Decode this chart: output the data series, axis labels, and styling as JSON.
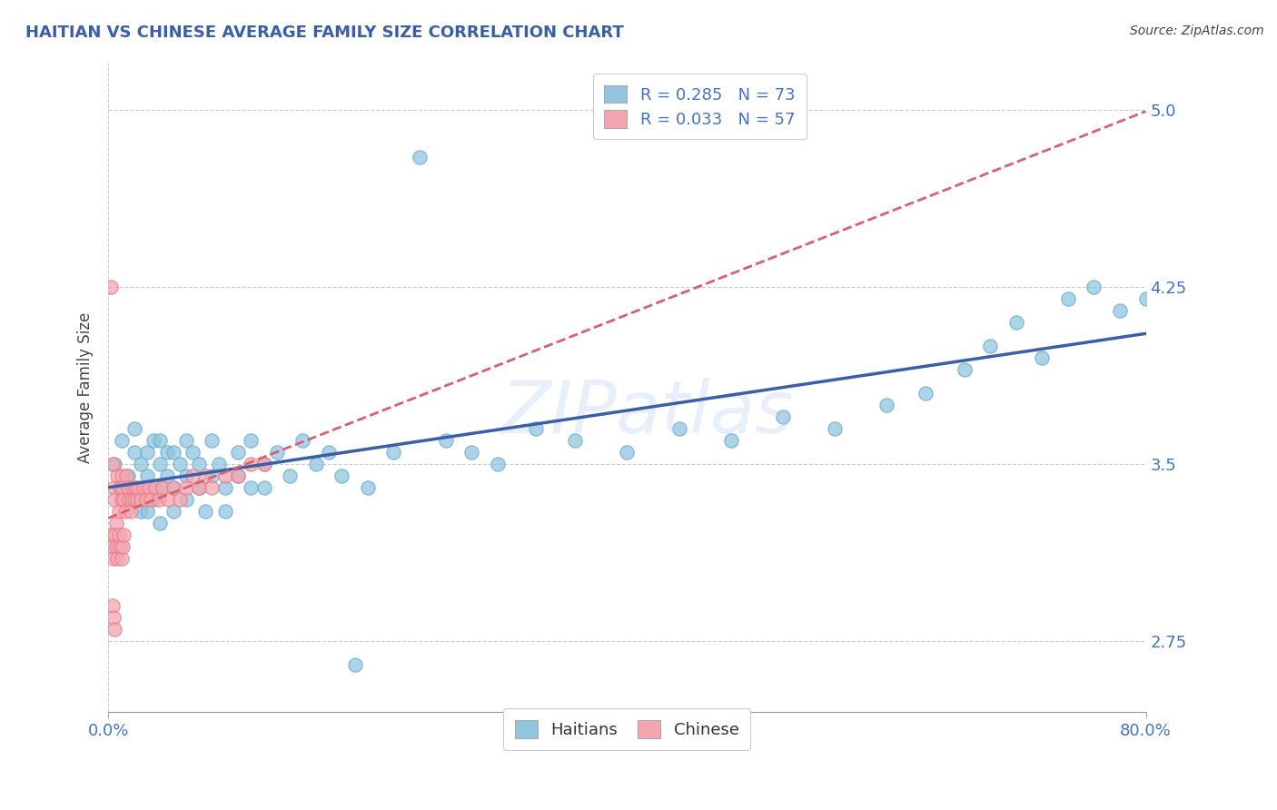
{
  "title": "HAITIAN VS CHINESE AVERAGE FAMILY SIZE CORRELATION CHART",
  "source": "Source: ZipAtlas.com",
  "ylabel": "Average Family Size",
  "xlim": [
    0.0,
    0.8
  ],
  "ylim": [
    2.45,
    5.2
  ],
  "yticks": [
    2.75,
    3.5,
    4.25,
    5.0
  ],
  "xticks": [
    0.0,
    0.8
  ],
  "xticklabels": [
    "0.0%",
    "80.0%"
  ],
  "haitian_color": "#92c5de",
  "chinese_color": "#f4a6b0",
  "haitian_edge": "#6baed6",
  "chinese_edge": "#e87d8a",
  "haitian_R": 0.285,
  "haitian_N": 73,
  "chinese_R": 0.033,
  "chinese_N": 57,
  "trend_blue": "#3a5fa8",
  "trend_pink": "#d9606e",
  "grid_color": "#cccccc",
  "title_color": "#3a5fa8",
  "right_axis_color": "#4472c4",
  "watermark": "ZIPatlas",
  "haitian_x": [
    0.005,
    0.01,
    0.01,
    0.015,
    0.02,
    0.02,
    0.02,
    0.025,
    0.025,
    0.03,
    0.03,
    0.03,
    0.03,
    0.035,
    0.035,
    0.04,
    0.04,
    0.04,
    0.04,
    0.045,
    0.045,
    0.05,
    0.05,
    0.05,
    0.055,
    0.06,
    0.06,
    0.06,
    0.065,
    0.07,
    0.07,
    0.075,
    0.08,
    0.08,
    0.085,
    0.09,
    0.09,
    0.1,
    0.1,
    0.11,
    0.11,
    0.12,
    0.12,
    0.13,
    0.14,
    0.15,
    0.16,
    0.17,
    0.18,
    0.19,
    0.2,
    0.22,
    0.24,
    0.26,
    0.28,
    0.3,
    0.33,
    0.36,
    0.4,
    0.44,
    0.48,
    0.52,
    0.56,
    0.6,
    0.63,
    0.66,
    0.68,
    0.7,
    0.72,
    0.74,
    0.76,
    0.78,
    0.8
  ],
  "haitian_y": [
    3.5,
    3.4,
    3.6,
    3.45,
    3.55,
    3.35,
    3.65,
    3.5,
    3.3,
    3.45,
    3.55,
    3.4,
    3.3,
    3.6,
    3.35,
    3.5,
    3.4,
    3.6,
    3.25,
    3.55,
    3.45,
    3.4,
    3.55,
    3.3,
    3.5,
    3.6,
    3.45,
    3.35,
    3.55,
    3.5,
    3.4,
    3.3,
    3.45,
    3.6,
    3.5,
    3.4,
    3.3,
    3.55,
    3.45,
    3.6,
    3.4,
    3.5,
    3.4,
    3.55,
    3.45,
    3.6,
    3.5,
    3.55,
    3.45,
    2.65,
    3.4,
    3.55,
    4.8,
    3.6,
    3.55,
    3.5,
    3.65,
    3.6,
    3.55,
    3.65,
    3.6,
    3.7,
    3.65,
    3.75,
    3.8,
    3.9,
    4.0,
    4.1,
    3.95,
    4.2,
    4.25,
    4.15,
    4.2
  ],
  "chinese_x": [
    0.002,
    0.003,
    0.004,
    0.005,
    0.006,
    0.007,
    0.008,
    0.009,
    0.01,
    0.01,
    0.011,
    0.012,
    0.013,
    0.014,
    0.015,
    0.016,
    0.017,
    0.018,
    0.019,
    0.02,
    0.021,
    0.022,
    0.023,
    0.025,
    0.027,
    0.029,
    0.031,
    0.033,
    0.036,
    0.039,
    0.042,
    0.046,
    0.05,
    0.055,
    0.06,
    0.065,
    0.07,
    0.075,
    0.08,
    0.09,
    0.1,
    0.11,
    0.12,
    0.002,
    0.003,
    0.004,
    0.005,
    0.006,
    0.007,
    0.008,
    0.009,
    0.01,
    0.011,
    0.012,
    0.003,
    0.004,
    0.005
  ],
  "chinese_y": [
    4.25,
    3.5,
    3.4,
    3.35,
    3.25,
    3.45,
    3.3,
    3.4,
    3.45,
    3.35,
    3.4,
    3.35,
    3.3,
    3.45,
    3.4,
    3.35,
    3.3,
    3.35,
    3.4,
    3.35,
    3.4,
    3.35,
    3.4,
    3.35,
    3.4,
    3.35,
    3.4,
    3.35,
    3.4,
    3.35,
    3.4,
    3.35,
    3.4,
    3.35,
    3.4,
    3.45,
    3.4,
    3.45,
    3.4,
    3.45,
    3.45,
    3.5,
    3.5,
    3.2,
    3.15,
    3.1,
    3.2,
    3.15,
    3.1,
    3.2,
    3.15,
    3.1,
    3.15,
    3.2,
    2.9,
    2.85,
    2.8
  ]
}
